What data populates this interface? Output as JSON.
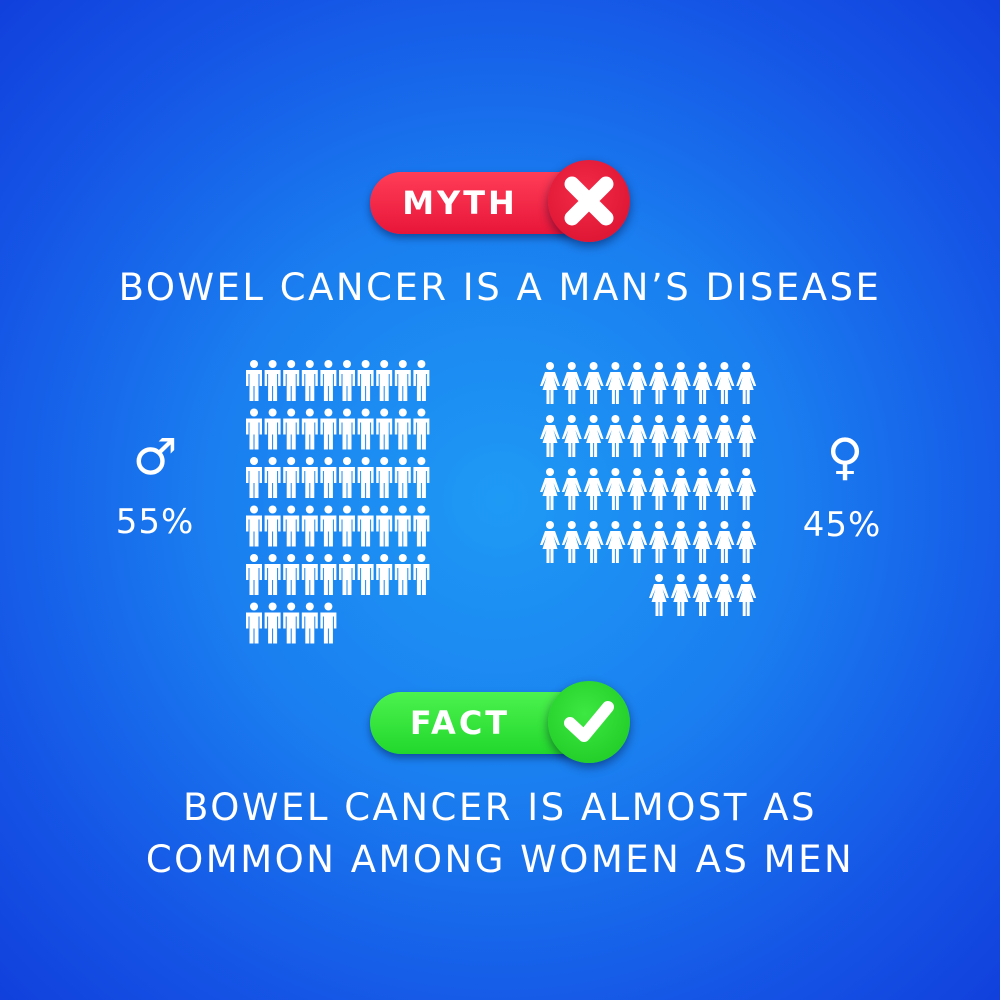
{
  "myth": {
    "label": "MYTH",
    "icon": "x-mark-icon",
    "color": "#e8163a",
    "statement": "BOWEL CANCER IS A MAN’S DISEASE"
  },
  "fact": {
    "label": "FACT",
    "icon": "check-mark-icon",
    "color": "#22d82c",
    "statement_line1": "BOWEL CANCER IS ALMOST AS",
    "statement_line2": "COMMON AMONG WOMEN AS MEN"
  },
  "men": {
    "symbol": "♂",
    "percent_label": "55%",
    "icon_count": 55,
    "icon": "man-figure-icon"
  },
  "women": {
    "symbol": "♀",
    "percent_label": "45%",
    "icon_count": 45,
    "icon": "woman-figure-icon"
  },
  "colors": {
    "background": "#1a7ff0",
    "text": "#ffffff"
  }
}
